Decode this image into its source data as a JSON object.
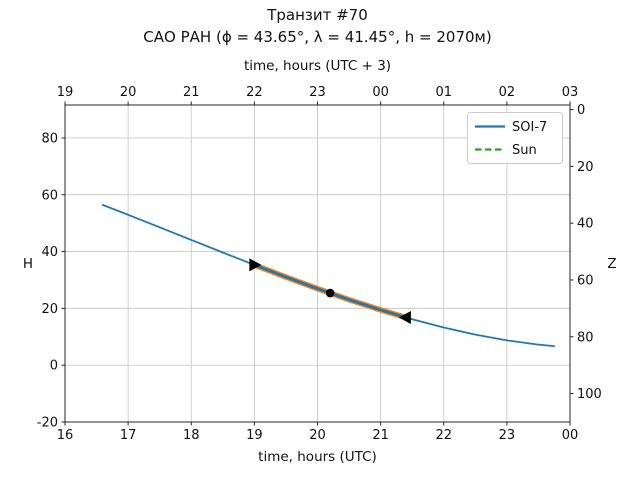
{
  "chart_data": {
    "type": "line",
    "title": "Транзит #70",
    "subtitle": "САО РАН (ϕ = 43.65°, λ = 41.45°, h = 2070м)",
    "xlabel_bottom": "time, hours (UTC)",
    "xlabel_top": "time, hours (UTC + 3)",
    "ylabel_left": "H",
    "ylabel_right": "Z",
    "xlim": [
      16,
      24
    ],
    "ylim": [
      -20,
      91.6
    ],
    "grid": true,
    "x_ticks_bottom": {
      "values": [
        16,
        17,
        18,
        19,
        20,
        21,
        22,
        23,
        24
      ],
      "labels": [
        "16",
        "17",
        "18",
        "19",
        "20",
        "21",
        "22",
        "23",
        "00"
      ]
    },
    "x_ticks_top": {
      "values": [
        16,
        17,
        18,
        19,
        20,
        21,
        22,
        23,
        24
      ],
      "labels": [
        "19",
        "20",
        "21",
        "22",
        "23",
        "00",
        "01",
        "02",
        "03"
      ]
    },
    "y_ticks_left": {
      "values": [
        -20,
        0,
        20,
        40,
        60,
        80
      ],
      "labels": [
        "-20",
        "0",
        "20",
        "40",
        "60",
        "80"
      ]
    },
    "y_ticks_right": {
      "values_in_H": [
        90,
        70,
        50,
        30,
        10,
        -10
      ],
      "labels": [
        "0",
        "20",
        "40",
        "60",
        "80",
        "100"
      ]
    },
    "series": [
      {
        "name": "SOI-7",
        "color": "#1f77b4",
        "x": [
          16.6,
          17.0,
          17.5,
          18.0,
          18.5,
          19.0,
          19.5,
          20.0,
          20.2,
          20.5,
          21.0,
          21.4,
          21.5,
          22.0,
          22.5,
          23.0,
          23.5,
          23.75
        ],
        "y": [
          56.4,
          52.95,
          48.55,
          44.1,
          39.67,
          35.3,
          31.04,
          26.95,
          25.4,
          23.07,
          19.46,
          16.8,
          16.17,
          13.25,
          10.76,
          8.74,
          7.23,
          6.7
        ]
      },
      {
        "name": "Sun",
        "color": "#2ca02c",
        "x": [],
        "y": []
      }
    ],
    "transit_segment": {
      "color": "#ff7f0e",
      "x_start": 19.0,
      "x_end": 21.4
    },
    "markers": [
      {
        "type": "triangle-right",
        "x": 19.0,
        "y": 35.3,
        "color": "#000000"
      },
      {
        "type": "circle",
        "x": 20.2,
        "y": 25.4,
        "color": "#000000"
      },
      {
        "type": "triangle-left",
        "x": 21.4,
        "y": 16.8,
        "color": "#000000"
      }
    ],
    "legend": {
      "position": "upper right",
      "entries": [
        {
          "label": "SOI-7",
          "color": "#1f77b4",
          "dash": "solid"
        },
        {
          "label": "Sun",
          "color": "#2ca02c",
          "dash": "dashed"
        }
      ]
    },
    "style": {
      "grid_color": "#c9c9c9",
      "spine_color": "#262626",
      "background": "#ffffff"
    }
  }
}
